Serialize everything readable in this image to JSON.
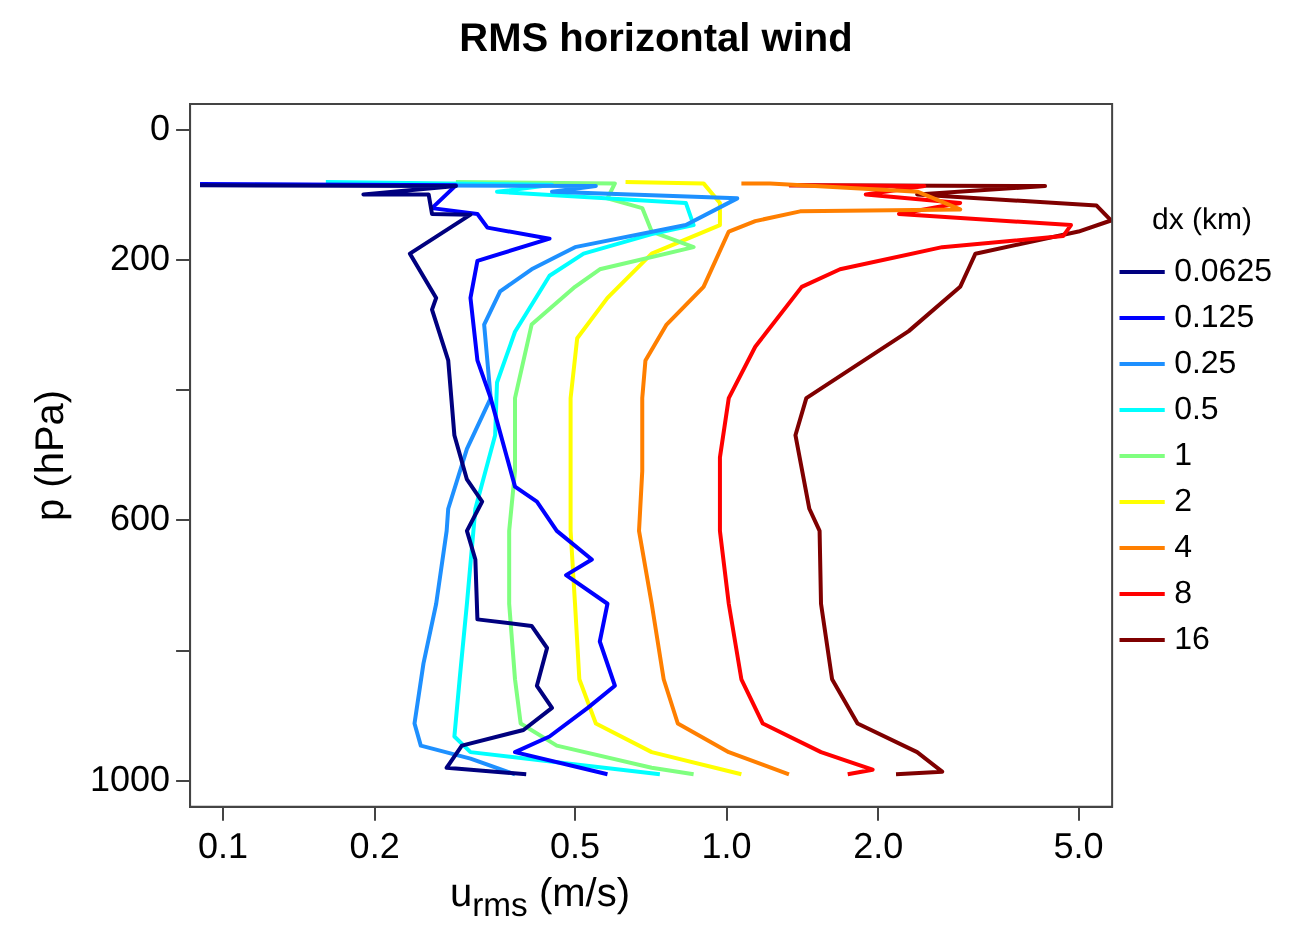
{
  "chart_data": {
    "type": "line",
    "title": "RMS horizontal wind",
    "xlabel": "u$_{rms}$  (m/s)",
    "ylabel": "p (hPa)",
    "legend_title": "dx (km)",
    "legend": "right",
    "log": "x",
    "grid": false,
    "xlim": [
      0.086,
      5.83
    ],
    "xticks": [
      0.1,
      0.2,
      0.5,
      {
        "value": 1,
        "label": "1.0"
      },
      {
        "value": 2,
        "label": "2.0"
      },
      {
        "value": 5,
        "label": "5.0"
      }
    ],
    "ylim": [
      1040,
      -40
    ],
    "yticks": [
      0,
      200,
      {
        "value": 400,
        "label": null
      },
      600,
      {
        "value": 800,
        "label": null
      },
      1000
    ],
    "series": [
      {
        "name": "0.0625",
        "color": "#00007f",
        "x": [
          0.09,
          0.29,
          0.19,
          0.256,
          0.26,
          0.31,
          0.235,
          0.265,
          0.26,
          0.28,
          0.288,
          0.305,
          0.327,
          0.305,
          0.317,
          0.32,
          0.41,
          0.44,
          0.42,
          0.45,
          0.395,
          0.298,
          0.278,
          0.4
        ],
        "values": [
          85,
          86,
          99,
          99,
          129,
          130,
          190,
          258,
          276,
          354,
          469,
          537,
          571,
          616,
          660,
          752,
          762,
          796,
          854,
          888,
          922,
          946,
          980,
          990
        ]
      },
      {
        "name": "0.125",
        "color": "#0000ff",
        "x": [
          0.09,
          0.29,
          0.26,
          0.32,
          0.335,
          0.445,
          0.32,
          0.31,
          0.32,
          0.34,
          0.38,
          0.42,
          0.46,
          0.54,
          0.48,
          0.58,
          0.56,
          0.6,
          0.53,
          0.445,
          0.38,
          0.58
        ],
        "values": [
          83,
          85,
          120,
          129,
          150,
          167,
          201,
          258,
          354,
          412,
          548,
          571,
          616,
          660,
          684,
          728,
          786,
          854,
          888,
          932,
          956,
          990
        ]
      },
      {
        "name": "0.25",
        "color": "#1e90ff",
        "x": [
          0.09,
          0.55,
          0.45,
          1.05,
          0.83,
          0.5,
          0.41,
          0.355,
          0.33,
          0.34,
          0.305,
          0.28,
          0.278,
          0.265,
          0.25,
          0.24,
          0.247,
          0.31,
          0.38
        ],
        "values": [
          84,
          86,
          95,
          105,
          146,
          180,
          214,
          248,
          299,
          412,
          490,
          582,
          616,
          728,
          820,
          912,
          946,
          966,
          990
        ]
      },
      {
        "name": "0.5",
        "color": "#00ffff",
        "x": [
          0.16,
          0.45,
          0.35,
          0.83,
          0.86,
          0.71,
          0.52,
          0.445,
          0.38,
          0.35,
          0.347,
          0.317,
          0.305,
          0.295,
          0.288,
          0.31,
          0.737
        ],
        "values": [
          80,
          84,
          95,
          112,
          146,
          160,
          190,
          224,
          310,
          388,
          469,
          582,
          728,
          844,
          932,
          956,
          990
        ]
      },
      {
        "name": "1",
        "color": "#7fff7f",
        "x": [
          0.29,
          0.6,
          0.58,
          0.68,
          0.71,
          0.86,
          0.56,
          0.5,
          0.41,
          0.38,
          0.38,
          0.37,
          0.37,
          0.38,
          0.39,
          0.46,
          0.71,
          0.86
        ],
        "values": [
          80,
          82,
          105,
          120,
          156,
          180,
          214,
          241,
          299,
          412,
          524,
          616,
          728,
          844,
          912,
          946,
          980,
          990
        ]
      },
      {
        "name": "2",
        "color": "#ffff00",
        "x": [
          0.63,
          0.9,
          0.97,
          0.97,
          0.71,
          0.58,
          0.505,
          0.49,
          0.49,
          0.5,
          0.51,
          0.55,
          0.71,
          1.07
        ],
        "values": [
          80,
          82,
          112,
          146,
          190,
          258,
          320,
          412,
          616,
          728,
          844,
          912,
          956,
          990
        ]
      },
      {
        "name": "4",
        "color": "#ff7f00",
        "x": [
          1.07,
          1.22,
          2.4,
          2.91,
          1.4,
          1.14,
          1.01,
          0.9,
          0.76,
          0.69,
          0.68,
          0.68,
          0.67,
          0.71,
          0.75,
          0.8,
          1.01,
          1.33
        ],
        "values": [
          82,
          82,
          95,
          122,
          125,
          140,
          156,
          241,
          299,
          354,
          412,
          524,
          616,
          728,
          844,
          912,
          956,
          990
        ]
      },
      {
        "name": "8",
        "color": "#ff0000",
        "x": [
          1.33,
          2.47,
          1.89,
          2.91,
          2.2,
          4.83,
          4.66,
          2.68,
          1.68,
          1.41,
          1.14,
          1.01,
          0.97,
          0.97,
          1.01,
          1.07,
          1.18,
          1.54,
          1.95,
          1.74
        ],
        "values": [
          85,
          86,
          99,
          112,
          129,
          146,
          163,
          180,
          214,
          241,
          333,
          412,
          503,
          616,
          728,
          844,
          912,
          956,
          983,
          990
        ]
      },
      {
        "name": "16",
        "color": "#7f0000",
        "x": [
          1.33,
          4.29,
          2.39,
          5.43,
          5.8,
          5.0,
          3.12,
          3.02,
          2.91,
          2.3,
          1.44,
          1.37,
          1.46,
          1.53,
          1.54,
          1.62,
          1.82,
          2.39,
          2.68,
          2.17
        ],
        "values": [
          85,
          86,
          99,
          116,
          139,
          156,
          190,
          214,
          241,
          309,
          412,
          469,
          582,
          616,
          728,
          844,
          912,
          956,
          986,
          990
        ]
      }
    ]
  }
}
